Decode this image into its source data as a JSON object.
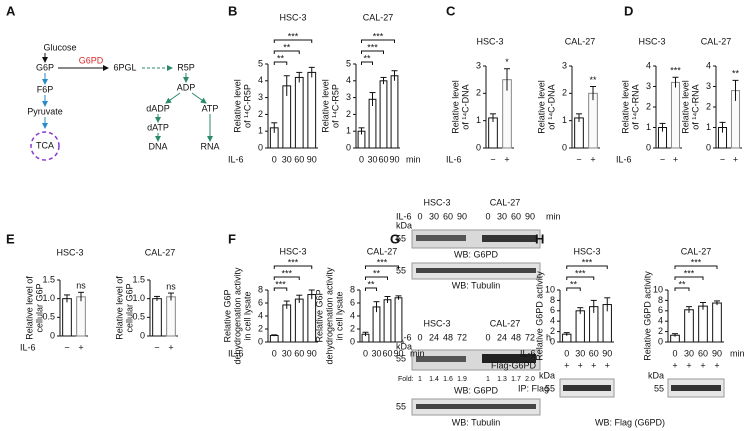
{
  "panel_a": {
    "letter": "A",
    "glucose": "Glucose",
    "g6p": "G6P",
    "enzyme": "G6PD",
    "pgl": "6PGL",
    "r5p": "R5P",
    "f6p": "F6P",
    "pyruvate": "Pyruvate",
    "tca": "TCA",
    "adp": "ADP",
    "dadp": "dADP",
    "atp": "ATP",
    "datp": "dATP",
    "dna": "DNA",
    "rna": "RNA"
  },
  "panel_g": {
    "letter": "G",
    "top": {
      "cells": [
        "HSC-3",
        "CAL-27"
      ],
      "il6": "IL-6",
      "lanes": [
        "0",
        "30",
        "60",
        "90",
        "0",
        "30",
        "60",
        "90"
      ],
      "unit": "min",
      "kda": "kDa",
      "mw1": "55",
      "wb1": "WB: G6PD",
      "mw2": "55",
      "wb2": "WB: Tubulin"
    },
    "bottom": {
      "cells": [
        "HSC-3",
        "CAL-27"
      ],
      "il6": "IL-6",
      "lanes": [
        "0",
        "24",
        "48",
        "72",
        "0",
        "24",
        "48",
        "72"
      ],
      "unit": "h",
      "kda": "kDa",
      "mw1": "55",
      "fold_label": "Fold:",
      "fold": [
        "1",
        "1.4",
        "1.6",
        "1.9",
        "1",
        "1.3",
        "1.7",
        "2.0"
      ],
      "wb1": "WB: G6PD",
      "mw2": "55",
      "wb2": "WB: Tubulin"
    }
  },
  "panel_h_blot": {
    "flag": "Flag-G6PD",
    "signs_left": [
      "+",
      "+",
      "+",
      "+"
    ],
    "signs_right": [
      "+",
      "+",
      "+",
      "+"
    ],
    "kda_left": "kDa",
    "mw_left": "55",
    "kda_right": "kDa",
    "mw_right": "55",
    "ip": "IP: Flag",
    "wb": "WB: Flag (G6PD)"
  },
  "chart_data": [
    {
      "type": "bar",
      "panel": "B",
      "title": "HSC-3",
      "ylabel": [
        "Relative level",
        "of ¹⁴C-R5P"
      ],
      "categories": [
        "0",
        "30",
        "60",
        "90"
      ],
      "values": [
        1.2,
        3.7,
        4.2,
        4.5
      ],
      "errors": [
        0.3,
        0.6,
        0.3,
        0.3
      ],
      "ylim": [
        0,
        5
      ],
      "yticks": [
        0,
        1,
        2,
        3,
        4,
        5
      ],
      "significance": [
        "**",
        "**",
        "***"
      ],
      "xlabel": "IL-6"
    },
    {
      "type": "bar",
      "title": "CAL-27",
      "ylabel": [
        "Relative level",
        "of ¹⁴C-R5P"
      ],
      "categories": [
        "0",
        "30",
        "60",
        "90"
      ],
      "values": [
        1.0,
        2.9,
        4.0,
        4.3
      ],
      "errors": [
        0.2,
        0.4,
        0.2,
        0.3
      ],
      "ylim": [
        0,
        5
      ],
      "yticks": [
        0,
        1,
        2,
        3,
        4,
        5
      ],
      "significance": [
        "**",
        "***",
        "***"
      ],
      "unit": "min"
    },
    {
      "type": "bar",
      "panel": "C",
      "title": "HSC-3",
      "ylabel": [
        "Relative level",
        "of ¹⁴C-DNA"
      ],
      "categories": [
        "−",
        "+"
      ],
      "values": [
        1.1,
        2.5
      ],
      "errors": [
        0.15,
        0.4
      ],
      "ylim": [
        0,
        3
      ],
      "yticks": [
        0,
        1,
        2,
        3
      ],
      "significance": [
        "*"
      ],
      "xlabel": "IL-6"
    },
    {
      "type": "bar",
      "title": "CAL-27",
      "ylabel": [
        "Relative level",
        "of ¹⁴C-DNA"
      ],
      "categories": [
        "−",
        "+"
      ],
      "values": [
        1.1,
        2.0
      ],
      "errors": [
        0.15,
        0.25
      ],
      "ylim": [
        0,
        3
      ],
      "yticks": [
        0,
        1,
        2,
        3
      ],
      "significance": [
        "**"
      ]
    },
    {
      "type": "bar",
      "panel": "D",
      "title": "HSC-3",
      "ylabel": [
        "Relative level",
        "of ¹⁴C-RNA"
      ],
      "categories": [
        "−",
        "+"
      ],
      "values": [
        1.0,
        3.2
      ],
      "errors": [
        0.2,
        0.25
      ],
      "ylim": [
        0,
        4
      ],
      "yticks": [
        0,
        1,
        2,
        3,
        4
      ],
      "significance": [
        "***"
      ],
      "xlabel": "IL-6"
    },
    {
      "type": "bar",
      "title": "CAL-27",
      "ylabel": [
        "Relative level",
        "of ¹⁴C-RNA"
      ],
      "categories": [
        "−",
        "+"
      ],
      "values": [
        1.0,
        2.8
      ],
      "errors": [
        0.25,
        0.5
      ],
      "ylim": [
        0,
        4
      ],
      "yticks": [
        0,
        1,
        2,
        3,
        4
      ],
      "significance": [
        "**"
      ]
    },
    {
      "type": "bar",
      "panel": "E",
      "title": "HSC-3",
      "ylabel": [
        "Relative level of",
        "cellular G6P"
      ],
      "categories": [
        "−",
        "+"
      ],
      "values": [
        1.0,
        1.05
      ],
      "errors": [
        0.1,
        0.12
      ],
      "ylim": [
        0,
        1.5
      ],
      "yticks": [
        0,
        0.5,
        {
          "value": 1,
          "label": "1.0"
        },
        1.5
      ],
      "significance": [
        "ns"
      ],
      "xlabel": "IL-6"
    },
    {
      "type": "bar",
      "title": "CAL-27",
      "ylabel": [
        "Relative level of",
        "cellular G6P"
      ],
      "categories": [
        "−",
        "+"
      ],
      "values": [
        1.0,
        1.05
      ],
      "errors": [
        0.06,
        0.1
      ],
      "ylim": [
        0,
        1.5
      ],
      "yticks": [
        0,
        0.5,
        {
          "value": 1,
          "label": "1.0"
        },
        1.5
      ],
      "significance": [
        "ns"
      ]
    },
    {
      "type": "bar",
      "panel": "F",
      "title": "HSC-3",
      "ylabel": [
        "Relative G6P",
        "dehydrogenation activity",
        "in cell lysate"
      ],
      "categories": [
        "0",
        "30",
        "60",
        "90"
      ],
      "values": [
        1.0,
        5.7,
        6.6,
        7.3
      ],
      "errors": [
        0.1,
        0.6,
        0.6,
        0.7
      ],
      "ylim": [
        0,
        8
      ],
      "yticks": [
        0,
        2,
        4,
        6,
        8
      ],
      "significance": [
        "***",
        "***",
        "***"
      ],
      "xlabel": "IL-6"
    },
    {
      "type": "bar",
      "title": "CAL-27",
      "ylabel": [
        "Relative G6P",
        "dehydrogenation activity",
        "in cell lysate"
      ],
      "categories": [
        "0",
        "30",
        "60",
        "90"
      ],
      "values": [
        1.2,
        5.4,
        6.5,
        6.8
      ],
      "errors": [
        0.3,
        0.8,
        0.5,
        0.3
      ],
      "ylim": [
        0,
        8
      ],
      "yticks": [
        0,
        2,
        4,
        6,
        8
      ],
      "significance": [
        "**",
        "**",
        "***"
      ],
      "unit": "min"
    },
    {
      "type": "bar",
      "panel": "H",
      "title": "HSC-3",
      "ylabel": [
        "Relative G6PD activity"
      ],
      "categories": [
        "0",
        "30",
        "60",
        "90"
      ],
      "values": [
        1.5,
        6.0,
        6.8,
        7.2
      ],
      "errors": [
        0.3,
        0.6,
        1.2,
        1.3
      ],
      "ylim": [
        0,
        10
      ],
      "yticks": [
        0,
        2,
        4,
        6,
        8,
        10
      ],
      "significance": [
        "**",
        "***",
        "***"
      ],
      "xlabel": "IL-6"
    },
    {
      "type": "bar",
      "title": "CAL-27",
      "ylabel": [
        "Relative G6PD activity"
      ],
      "categories": [
        "0",
        "30",
        "60",
        "90"
      ],
      "values": [
        1.3,
        6.2,
        6.9,
        7.5
      ],
      "errors": [
        0.3,
        0.6,
        0.7,
        0.4
      ],
      "ylim": [
        0,
        10
      ],
      "yticks": [
        0,
        2,
        4,
        6,
        8,
        10
      ],
      "significance": [
        "**",
        "***",
        "***"
      ],
      "unit": "min"
    }
  ]
}
